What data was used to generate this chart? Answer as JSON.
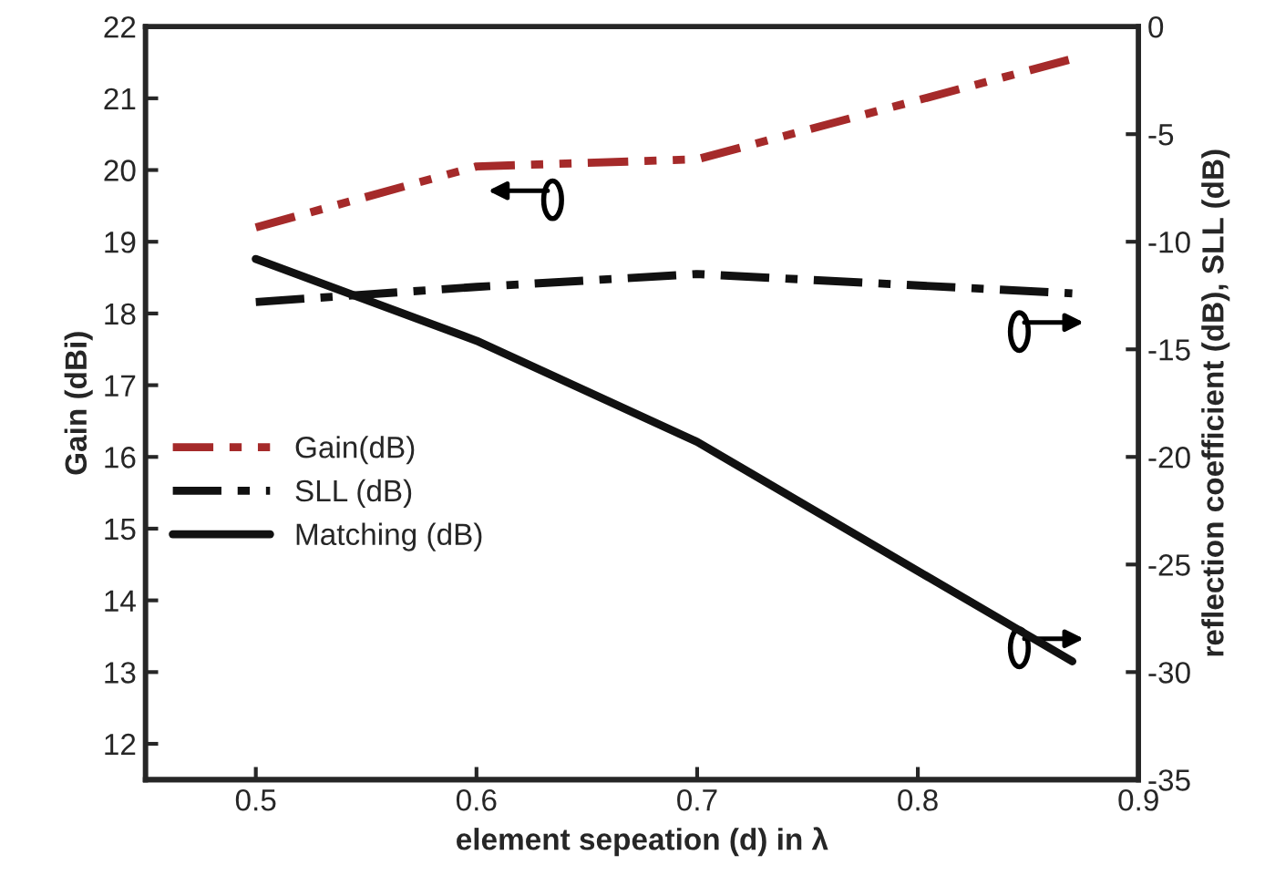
{
  "chart_data": {
    "type": "line",
    "xlabel": "element sepeation (d) in λ",
    "ylabel": "Gain (dBi)",
    "y2label": "reflection coefficient (dB), SLL (dB)",
    "x": [
      0.5,
      0.6,
      0.7,
      0.87
    ],
    "series": [
      {
        "name": "Gain(dB)",
        "color": "#a52a2a",
        "values": [
          19.2,
          20.05,
          20.15,
          21.55
        ],
        "line_style": "dashdotdot"
      },
      {
        "name": "SLL (dB)",
        "color": "#111111",
        "values": [
          -12.8,
          -12.1,
          -11.5,
          -12.4
        ],
        "axis": "y2",
        "line_style": "dashdot"
      },
      {
        "name": "Matching (dB)",
        "color": "#111111",
        "values": [
          -10.8,
          -14.6,
          -19.3,
          -29.5
        ],
        "axis": "y2",
        "line_style": "solid"
      }
    ],
    "xlim": [
      0.45,
      0.9
    ],
    "xticks": [
      0.5,
      0.6,
      0.7,
      0.8,
      0.9
    ],
    "ylim": [
      11.5,
      22
    ],
    "yticks": [
      12,
      13,
      14,
      15,
      16,
      17,
      18,
      19,
      20,
      21,
      22
    ],
    "y2lim": [
      -35,
      0
    ],
    "y2ticks": [
      -35,
      -30,
      -25,
      -20,
      -15,
      -10,
      -5,
      0
    ],
    "legend": "center left",
    "grid": false
  }
}
